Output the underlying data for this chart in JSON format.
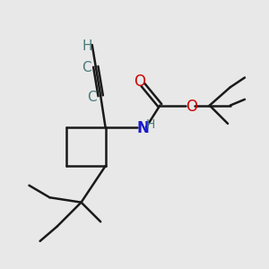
{
  "bg_color": "#e8e8e8",
  "line_color": "#1a1a1a",
  "bond_lw": 1.8,
  "colors": {
    "C": "#4a7a7a",
    "H": "#4a7a7a",
    "N": "#1a1acc",
    "O": "#cc0000",
    "black": "#1a1a1a"
  },
  "fs": 11
}
